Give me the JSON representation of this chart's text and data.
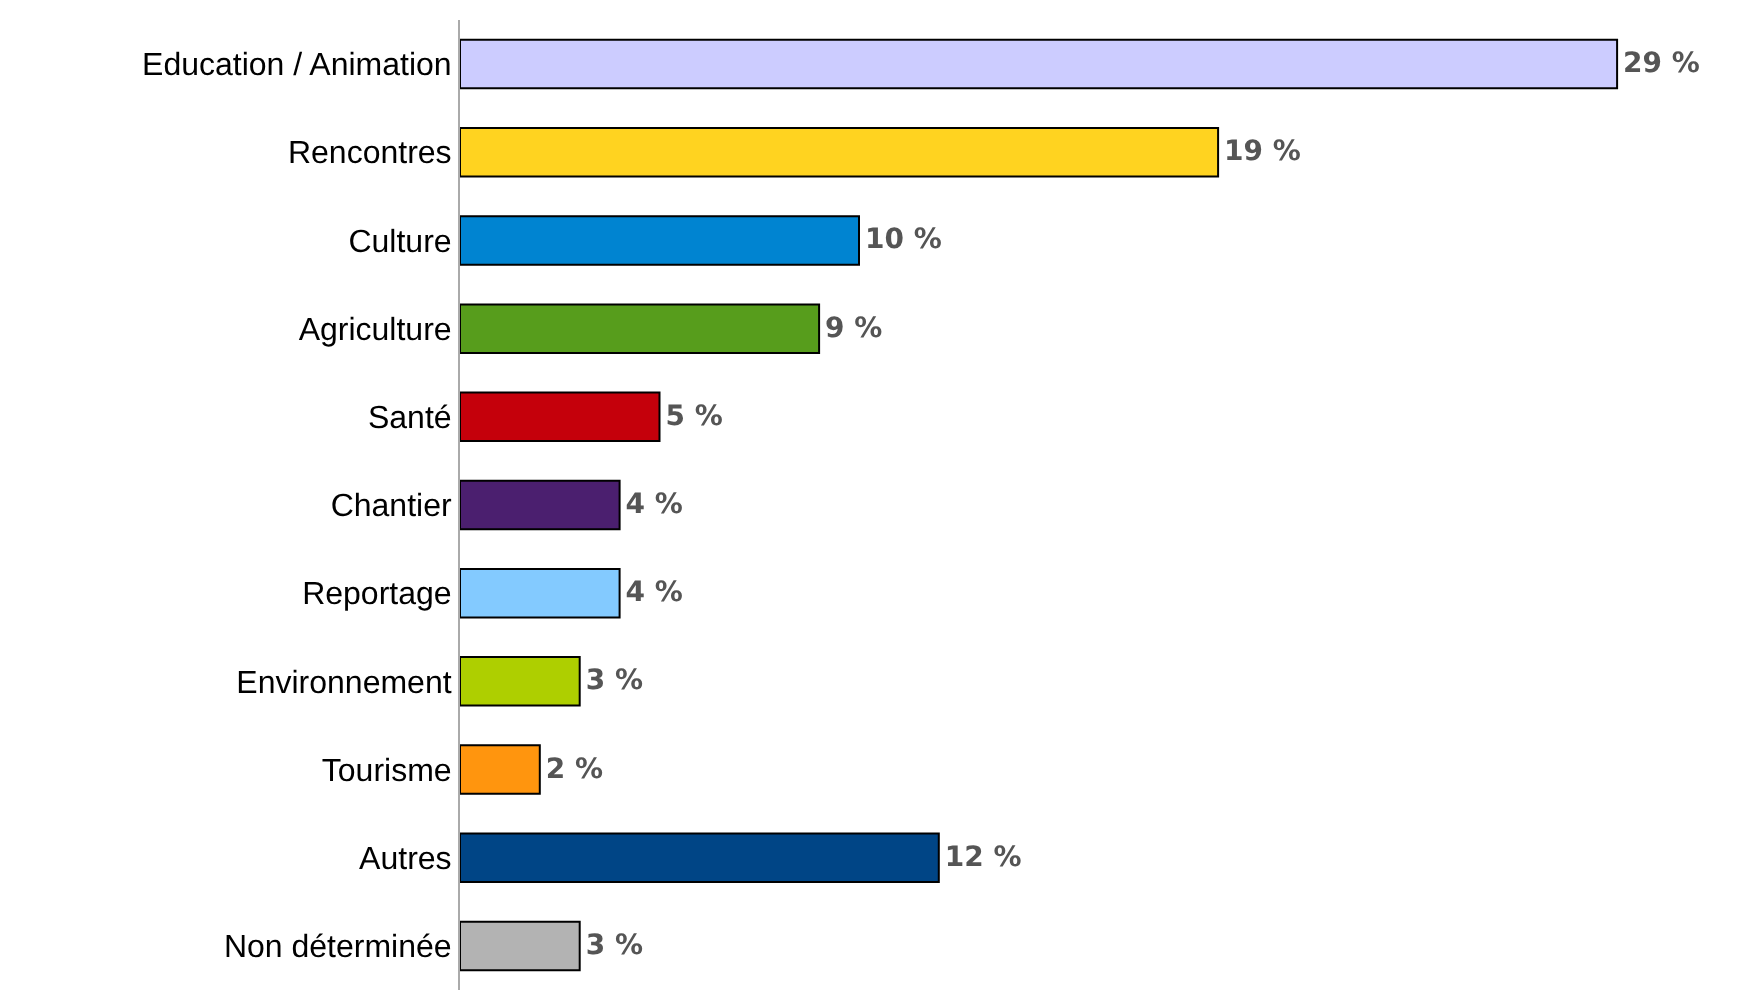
{
  "chart_data": {
    "type": "bar",
    "orientation": "horizontal",
    "categories": [
      "Education / Animation",
      "Rencontres",
      "Culture",
      "Agriculture",
      "Santé",
      "Chantier",
      "Reportage",
      "Environnement",
      "Tourisme",
      "Autres",
      "Non déterminée"
    ],
    "values": [
      29,
      19,
      10,
      9,
      5,
      4,
      4,
      3,
      2,
      12,
      3
    ],
    "value_labels": [
      "29 %",
      "19 %",
      "10 %",
      "9 %",
      "5 %",
      "4 %",
      "4 %",
      "3 %",
      "2 %",
      "12 %",
      "3 %"
    ],
    "colors": [
      "#ccccff",
      "#ffd320",
      "#0084d1",
      "#579d1c",
      "#c5000b",
      "#4b1f6f",
      "#83caff",
      "#aecf00",
      "#ff950e",
      "#004586",
      "#b3b3b3"
    ]
  }
}
